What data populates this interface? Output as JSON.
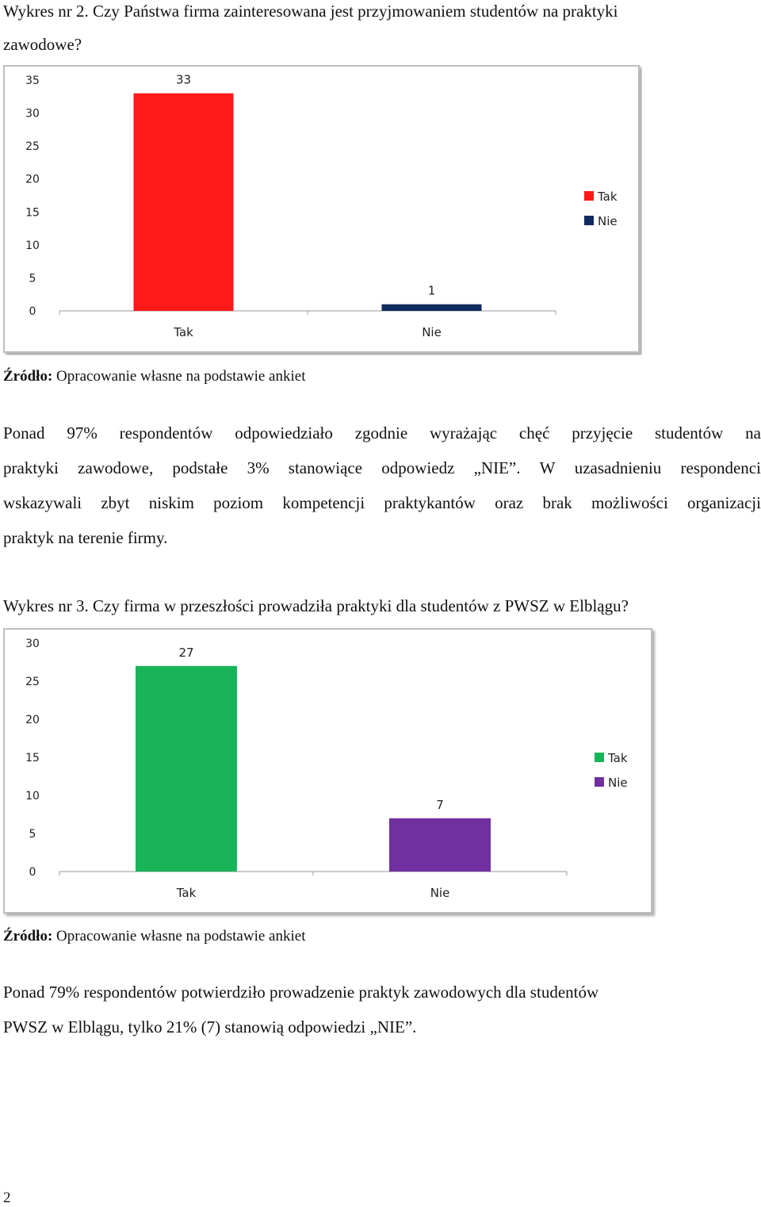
{
  "chart1_heading": {
    "line1": "Wykres nr 2. Czy Państwa firma zainteresowana jest przyjmowaniem studentów na praktyki",
    "line2": "zawodowe?"
  },
  "source_label": "Źródło:",
  "source_text": "Opracowanie własne na podstawie ankiet",
  "paragraph1": {
    "line1": [
      "Ponad",
      "97%",
      "respondentów",
      "odpowiedziało",
      "zgodnie",
      "wyrażając",
      "chęć",
      "przyjęcie",
      "studentów",
      "na"
    ],
    "line2": [
      "praktyki",
      "zawodowe,",
      "podstałe",
      "3%",
      "stanowiące",
      "odpowiedz",
      "„NIE”.",
      "W",
      "uzasadnieniu",
      "respondenci"
    ],
    "line3": [
      "wskazywali",
      "zbyt",
      "niskim",
      "poziom",
      "kompetencji",
      "praktykantów",
      "oraz",
      "brak",
      "możliwości",
      "organizacji"
    ],
    "line4": "praktyk na terenie firmy."
  },
  "chart2_heading": "Wykres nr 3. Czy firma w przeszłości prowadziła praktyki dla studentów z PWSZ w Elblągu?",
  "paragraph2": {
    "line1": "Ponad 79% respondentów potwierdziło prowadzenie praktyk zawodowych dla studentów",
    "line2": "PWSZ w Elblągu, tylko 21% (7) stanowią odpowiedzi „NIE”."
  },
  "page_number": "2",
  "chart_data": [
    {
      "type": "bar",
      "title": "",
      "categories": [
        "Tak",
        "Nie"
      ],
      "values": [
        33,
        1
      ],
      "colors": [
        "#ff1a1a",
        "#0f2a5c"
      ],
      "legend": [
        "Tak",
        "Nie"
      ],
      "legend_position": "right",
      "yticks": [
        "0",
        "5",
        "10",
        "15",
        "20",
        "25",
        "30",
        "35"
      ],
      "ylim": [
        0,
        35
      ],
      "data_labels": [
        "33",
        "1"
      ],
      "grid": false
    },
    {
      "type": "bar",
      "title": "",
      "categories": [
        "Tak",
        "Nie"
      ],
      "values": [
        27,
        7
      ],
      "colors": [
        "#19b35a",
        "#7030a0"
      ],
      "legend": [
        "Tak",
        "Nie"
      ],
      "legend_position": "right",
      "yticks": [
        "0",
        "5",
        "10",
        "15",
        "20",
        "25",
        "30"
      ],
      "ylim": [
        0,
        30
      ],
      "data_labels": [
        "27",
        "7"
      ],
      "grid": false
    }
  ]
}
